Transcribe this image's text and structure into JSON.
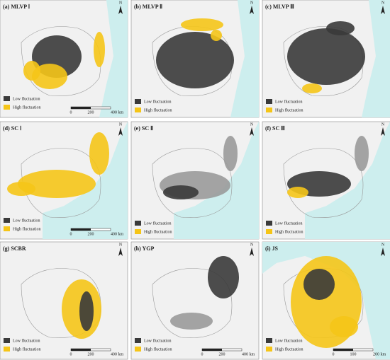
{
  "panels": [
    {
      "title": "(a) MLVP Ⅰ",
      "legend": [
        "Low fluctuation",
        "High fluctuation"
      ],
      "scale": [
        "0",
        "200",
        "400 km"
      ],
      "north": "N"
    },
    {
      "title": "(b) MLVP Ⅱ",
      "legend": [
        "Low fluctuation",
        "High fluctuation"
      ],
      "north": "N"
    },
    {
      "title": "(c) MLVP Ⅲ",
      "legend": [
        "Low fluctuation",
        "High fluctuation"
      ],
      "north": "N"
    },
    {
      "title": "(d) SC Ⅰ",
      "legend": [
        "Low fluctuation",
        "High fluctuation"
      ],
      "scale": [
        "0",
        "200",
        "400 km"
      ],
      "north": "N"
    },
    {
      "title": "(e) SC Ⅱ",
      "legend": [
        "Low fluctuation",
        "High fluctuation"
      ],
      "north": "N"
    },
    {
      "title": "(f) SC Ⅲ",
      "legend": [
        "Low fluctuation",
        "High fluctuation"
      ],
      "north": "N"
    },
    {
      "title": "(g) SCBR",
      "legend": [
        "Low fluctuation",
        "High fluctuation"
      ],
      "scale": [
        "0",
        "200",
        "400 km"
      ],
      "north": "N"
    },
    {
      "title": "(h) YGP",
      "legend": [
        "Low fluctuation",
        "High fluctuation"
      ],
      "scale": [
        "0",
        "200",
        "400 km"
      ],
      "north": "N"
    },
    {
      "title": "(i) JS",
      "legend": [
        "Low fluctuation",
        "High fluctuation"
      ],
      "scale": [
        "0",
        "100",
        "200 km"
      ],
      "north": "N"
    }
  ]
}
